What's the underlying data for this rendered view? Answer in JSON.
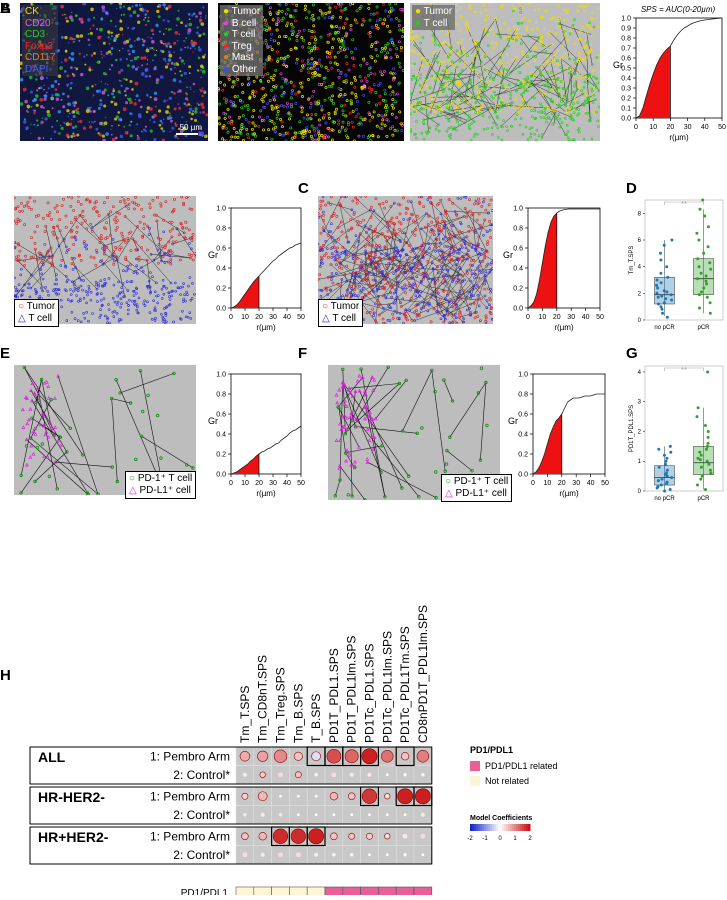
{
  "panel_labels": {
    "A": "A",
    "B": "B",
    "C": "C",
    "D": "D",
    "E": "E",
    "F": "F",
    "G": "G",
    "H": "H"
  },
  "panelA": {
    "channels": [
      {
        "label": "CK",
        "color": "#f0e000"
      },
      {
        "label": "CD20",
        "color": "#e060e0"
      },
      {
        "label": "CD3",
        "color": "#20d020"
      },
      {
        "label": "Foxp3",
        "color": "#ff2020"
      },
      {
        "label": "CD117",
        "color": "#e08020"
      },
      {
        "label": "DAPI",
        "color": "#4060ff"
      }
    ],
    "scalebar": "50 µm",
    "phenotypes": [
      {
        "label": "Tumor",
        "color": "#f0e000"
      },
      {
        "label": "B cell",
        "color": "#e040e0"
      },
      {
        "label": "T cell",
        "color": "#20d020"
      },
      {
        "label": "Treg",
        "color": "#ff2020"
      },
      {
        "label": "Mast",
        "color": "#e08020"
      },
      {
        "label": "Other",
        "color": "#3050ff"
      }
    ],
    "pair_legend": [
      {
        "label": "Tumor",
        "color": "#f0e000"
      },
      {
        "label": "T cell",
        "color": "#20d020"
      }
    ],
    "sps_title": "SPS = AUC(0-20µm)"
  },
  "legend_B": {
    "tumor": "Tumor",
    "tcell": "T cell"
  },
  "legend_C": {
    "tumor": "Tumor",
    "tcell": "T cell"
  },
  "legend_E": {
    "pd1": "PD-1⁺ T cell",
    "pdl1": "PD-L1⁺ cell"
  },
  "legend_F": {
    "pd1": "PD-1⁺ T cell",
    "pdl1": "PD-L1⁺ cell"
  },
  "chart_data": [
    {
      "id": "A",
      "type": "area",
      "xlabel": "r(µm)",
      "ylabel": "Gr",
      "xlim": [
        0,
        50
      ],
      "ylim": [
        0,
        1
      ],
      "xticks": [
        0,
        10,
        20,
        30,
        40,
        50
      ],
      "yticks": [
        0,
        0.1,
        0.2,
        0.3,
        0.4,
        0.5,
        0.6,
        0.7,
        0.8,
        0.9,
        1.0
      ],
      "x": [
        0,
        2,
        4,
        6,
        8,
        10,
        12,
        14,
        16,
        18,
        20,
        22,
        24,
        26,
        28,
        30,
        32,
        34,
        36,
        38,
        40,
        42,
        44,
        46,
        48,
        50
      ],
      "y": [
        0,
        0.02,
        0.1,
        0.22,
        0.34,
        0.44,
        0.53,
        0.6,
        0.65,
        0.69,
        0.72,
        0.78,
        0.83,
        0.87,
        0.9,
        0.92,
        0.94,
        0.955,
        0.965,
        0.975,
        0.98,
        0.985,
        0.99,
        0.993,
        0.997,
        1.0
      ],
      "shade_to": 20
    },
    {
      "id": "B",
      "type": "area",
      "xlabel": "r(µm)",
      "ylabel": "Gr",
      "xlim": [
        0,
        50
      ],
      "ylim": [
        0,
        1
      ],
      "xticks": [
        0,
        10,
        20,
        30,
        40,
        50
      ],
      "yticks": [
        0,
        0.2,
        0.4,
        0.6,
        0.8,
        1.0
      ],
      "x": [
        0,
        2,
        4,
        6,
        8,
        10,
        12,
        14,
        16,
        18,
        20,
        22,
        24,
        26,
        28,
        30,
        32,
        34,
        36,
        38,
        40,
        42,
        44,
        46,
        48,
        50
      ],
      "y": [
        0,
        0.01,
        0.03,
        0.06,
        0.1,
        0.14,
        0.18,
        0.22,
        0.26,
        0.29,
        0.32,
        0.35,
        0.38,
        0.41,
        0.44,
        0.47,
        0.49,
        0.52,
        0.54,
        0.56,
        0.58,
        0.6,
        0.61,
        0.63,
        0.64,
        0.65
      ],
      "shade_to": 20
    },
    {
      "id": "C",
      "type": "area",
      "xlabel": "r(µm)",
      "ylabel": "Gr",
      "xlim": [
        0,
        50
      ],
      "ylim": [
        0,
        1
      ],
      "xticks": [
        0,
        10,
        20,
        30,
        40,
        50
      ],
      "yticks": [
        0,
        0.2,
        0.4,
        0.6,
        0.8,
        1.0
      ],
      "x": [
        0,
        2,
        4,
        6,
        8,
        10,
        12,
        14,
        16,
        18,
        20,
        22,
        24,
        26,
        28,
        30,
        32,
        34,
        36,
        38,
        40,
        42,
        44,
        46,
        48,
        50
      ],
      "y": [
        0,
        0.02,
        0.06,
        0.14,
        0.28,
        0.45,
        0.62,
        0.76,
        0.86,
        0.92,
        0.95,
        0.97,
        0.98,
        0.985,
        0.99,
        0.99,
        0.99,
        0.99,
        0.99,
        0.99,
        0.99,
        0.99,
        0.99,
        0.99,
        0.99,
        0.99
      ],
      "shade_to": 20
    },
    {
      "id": "D",
      "type": "box",
      "ylabel": "Tm_T.SPS",
      "categories": [
        "no pCR",
        "pCR"
      ],
      "ylim": [
        0,
        9
      ],
      "yticks": [
        0,
        2,
        4,
        6,
        8
      ],
      "colors": [
        "#1f78b4",
        "#33a02c"
      ],
      "boxes": [
        {
          "q1": 1.2,
          "median": 1.9,
          "q3": 3.2,
          "low": 0.3,
          "high": 6
        },
        {
          "q1": 1.9,
          "median": 3.1,
          "q3": 4.6,
          "low": 0.5,
          "high": 8.3
        }
      ],
      "points": [
        [
          0.2,
          0.5,
          0.8,
          1.0,
          1.2,
          1.3,
          1.5,
          1.6,
          1.7,
          1.8,
          1.9,
          2.0,
          2.1,
          2.2,
          2.4,
          2.6,
          2.8,
          3.0,
          3.2,
          3.5,
          4.0,
          4.5,
          5.0,
          5.6,
          6.0
        ],
        [
          0.5,
          0.9,
          1.3,
          1.7,
          1.9,
          2.1,
          2.4,
          2.7,
          2.9,
          3.1,
          3.3,
          3.5,
          3.8,
          4.0,
          4.3,
          4.6,
          5.0,
          5.5,
          6.0,
          6.5,
          7.0,
          7.8,
          8.3,
          9.0
        ]
      ],
      "signif": "**"
    },
    {
      "id": "E",
      "type": "line",
      "xlabel": "r(µm)",
      "ylabel": "Gr",
      "xlim": [
        0,
        50
      ],
      "ylim": [
        0,
        1
      ],
      "xticks": [
        0,
        10,
        20,
        30,
        40,
        50
      ],
      "yticks": [
        0,
        0.2,
        0.4,
        0.6,
        0.8,
        1.0
      ],
      "x": [
        0,
        4,
        6,
        8,
        10,
        12,
        14,
        16,
        18,
        20,
        22,
        24,
        26,
        28,
        30,
        32,
        34,
        36,
        38,
        40,
        42,
        44,
        46,
        48,
        50
      ],
      "y": [
        0,
        0.02,
        0.04,
        0.06,
        0.08,
        0.1,
        0.13,
        0.15,
        0.18,
        0.2,
        0.22,
        0.23,
        0.25,
        0.26,
        0.28,
        0.3,
        0.31,
        0.34,
        0.36,
        0.38,
        0.41,
        0.43,
        0.44,
        0.46,
        0.48
      ],
      "shade_to": 20
    },
    {
      "id": "F",
      "type": "line",
      "xlabel": "r(µm)",
      "ylabel": "Gr",
      "xlim": [
        0,
        50
      ],
      "ylim": [
        0,
        1
      ],
      "xticks": [
        0,
        10,
        20,
        30,
        40,
        50
      ],
      "yticks": [
        0,
        0.2,
        0.4,
        0.6,
        0.8,
        1.0
      ],
      "x": [
        0,
        2,
        4,
        6,
        8,
        10,
        12,
        14,
        16,
        18,
        20,
        22,
        24,
        26,
        28,
        30,
        32,
        34,
        36,
        38,
        40,
        42,
        44,
        46,
        48,
        50
      ],
      "y": [
        0,
        0.02,
        0.06,
        0.12,
        0.2,
        0.3,
        0.4,
        0.47,
        0.53,
        0.56,
        0.6,
        0.66,
        0.72,
        0.74,
        0.76,
        0.76,
        0.76,
        0.77,
        0.78,
        0.78,
        0.78,
        0.79,
        0.8,
        0.8,
        0.8,
        0.8
      ],
      "shade_to": 20
    },
    {
      "id": "G",
      "type": "box",
      "ylabel": "PD1T_PDL1.SPS",
      "categories": [
        "no pCR",
        "pCR"
      ],
      "ylim": [
        0,
        4.2
      ],
      "yticks": [
        0,
        1,
        2,
        3,
        4
      ],
      "colors": [
        "#1f78b4",
        "#33a02c"
      ],
      "boxes": [
        {
          "q1": 0.2,
          "median": 0.45,
          "q3": 0.85,
          "low": 0.0,
          "high": 1.5
        },
        {
          "q1": 0.55,
          "median": 0.95,
          "q3": 1.5,
          "low": 0.05,
          "high": 2.8
        }
      ],
      "points": [
        [
          0.0,
          0.05,
          0.1,
          0.15,
          0.2,
          0.25,
          0.3,
          0.35,
          0.4,
          0.45,
          0.5,
          0.55,
          0.6,
          0.7,
          0.8,
          0.9,
          1.0,
          1.1,
          1.2,
          1.3,
          1.4,
          1.5
        ],
        [
          0.05,
          0.2,
          0.4,
          0.5,
          0.6,
          0.7,
          0.8,
          0.9,
          1.0,
          1.05,
          1.1,
          1.2,
          1.3,
          1.4,
          1.5,
          1.6,
          1.8,
          2.0,
          2.2,
          2.5,
          2.8,
          4.0
        ]
      ],
      "signif": "**"
    },
    {
      "id": "H",
      "type": "heatmap",
      "columns": [
        "Tm_T.SPS",
        "Tm_CD8nT.SPS",
        "Tm_Treg.SPS",
        "Tm_B.SPS",
        "T_B.SPS",
        "PD1T_PDL1.SPS",
        "PD1T_PDL1lm.SPS",
        "PD1Tc_PDL1.SPS",
        "PD1Tc_PDL1lm.SPS",
        "PD1Tc_PDL1Tm.SPS",
        "CD8nPD1T_PDL1lm.SPS"
      ],
      "groups": [
        {
          "name": "ALL",
          "rows": [
            "1: Pembro Arm",
            "2: Control*"
          ]
        },
        {
          "name": "HR-HER2-",
          "rows": [
            "1: Pembro Arm",
            "2: Control*"
          ]
        },
        {
          "name": "HR+HER2-",
          "rows": [
            "1: Pembro Arm",
            "2: Control*"
          ]
        }
      ],
      "coefficients": [
        [
          0.7,
          0.8,
          1.0,
          0.5,
          -0.3,
          1.5,
          1.3,
          1.9,
          1.2,
          0.5,
          1.1
        ],
        [
          0.2,
          0.4,
          0.3,
          0.5,
          0.1,
          0.3,
          0.2,
          0.2,
          0.0,
          0.1,
          0.1
        ],
        [
          0.4,
          0.6,
          0.0,
          0.0,
          0.0,
          0.6,
          0.5,
          1.7,
          0.3,
          1.9,
          1.9
        ],
        [
          0.2,
          0.2,
          0.2,
          0.0,
          0.0,
          0.0,
          0.0,
          0.0,
          0.0,
          0.0,
          0.2
        ],
        [
          0.5,
          0.6,
          1.8,
          1.8,
          1.9,
          0.5,
          0.5,
          0.4,
          0.3,
          0.2,
          0.3
        ],
        [
          0.3,
          0.2,
          0.3,
          0.3,
          0.2,
          0.1,
          0.1,
          0.0,
          0.0,
          0.1,
          0.0
        ]
      ],
      "sizes": [
        [
          0.55,
          0.6,
          0.75,
          0.45,
          0.5,
          0.85,
          0.8,
          0.95,
          0.7,
          0.4,
          0.7
        ],
        [
          0.15,
          0.25,
          0.2,
          0.3,
          0.1,
          0.2,
          0.15,
          0.15,
          0.05,
          0.1,
          0.1
        ],
        [
          0.3,
          0.5,
          0.05,
          0.05,
          0.05,
          0.4,
          0.35,
          0.9,
          0.25,
          0.95,
          0.95
        ],
        [
          0.1,
          0.15,
          0.1,
          0.05,
          0.05,
          0.05,
          0.05,
          0.05,
          0.05,
          0.05,
          0.15
        ],
        [
          0.35,
          0.4,
          0.9,
          0.9,
          0.95,
          0.35,
          0.3,
          0.3,
          0.25,
          0.2,
          0.2
        ],
        [
          0.2,
          0.15,
          0.2,
          0.2,
          0.15,
          0.1,
          0.1,
          0.05,
          0.05,
          0.1,
          0.05
        ]
      ],
      "boxed": [
        [
          4,
          5,
          6,
          7,
          9
        ],
        [
          7,
          9,
          10
        ],
        [
          2,
          3,
          4
        ]
      ],
      "pdl1_related": [
        false,
        false,
        false,
        false,
        false,
        true,
        true,
        true,
        true,
        true,
        true
      ],
      "legend": {
        "title": "PD1/PDL1",
        "related": "PD1/PDL1 related",
        "not_related": "Not related",
        "related_color": "#e8609a",
        "not_related_color": "#fdf5d5",
        "coef_title": "Model Coefficients",
        "coef_ticks": [
          "-2",
          "-1",
          "0",
          "1",
          "2"
        ]
      },
      "bottom_label": "PD1/PDL1"
    }
  ]
}
